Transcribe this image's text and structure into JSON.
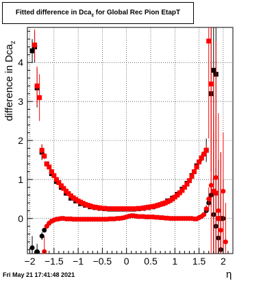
{
  "chart_data": {
    "type": "scatter",
    "title_main": "Fitted difference in Dca",
    "title_sub": "z",
    "title_rest": " for Global Rec Pion EtapT",
    "ylabel_main": "difference in Dca",
    "ylabel_sub": "z",
    "xlabel": "η",
    "xlim": [
      -2.05,
      2.2
    ],
    "ylim": [
      -0.9,
      4.9
    ],
    "x_ticks": [
      -2,
      -1.5,
      -1,
      -0.5,
      0,
      0.5,
      1,
      1.5,
      2
    ],
    "x_tick_labels": [
      "−2",
      "−1.5",
      "−1",
      "−0.5",
      "0",
      "0.5",
      "1",
      "1.5",
      "2"
    ],
    "y_ticks": [
      0,
      1,
      2,
      3,
      4
    ],
    "y_tick_labels": [
      "0",
      "1",
      "2",
      "3",
      "4"
    ],
    "grid": "dotted",
    "series": [
      {
        "marker": "square",
        "color": "#000000",
        "x": [
          -1.95,
          -1.9,
          -1.85,
          -1.75,
          -1.65,
          -1.55,
          -1.45,
          -1.35,
          -1.25,
          -1.15,
          -1.05,
          -0.95,
          -0.85,
          -0.75,
          -0.65,
          -0.55,
          -0.45,
          -0.35,
          -0.25,
          -0.15,
          -0.05,
          0.05,
          0.15,
          0.25,
          0.35,
          0.45,
          0.55,
          0.65,
          0.75,
          0.85,
          0.95,
          1.05,
          1.15,
          1.25,
          1.35,
          1.45,
          1.55,
          1.65,
          1.75,
          1.8,
          1.85,
          1.95
        ],
        "y": [
          4.3,
          4.4,
          3.35,
          1.7,
          1.4,
          1.15,
          0.95,
          0.8,
          0.65,
          0.52,
          0.45,
          0.38,
          0.34,
          0.3,
          0.28,
          0.26,
          0.25,
          0.24,
          0.24,
          0.24,
          0.24,
          0.24,
          0.24,
          0.25,
          0.26,
          0.28,
          0.3,
          0.34,
          0.38,
          0.45,
          0.52,
          0.62,
          0.75,
          0.9,
          1.1,
          1.35,
          1.55,
          1.75,
          3.2,
          3.8,
          3.7,
          0.0
        ],
        "err": [
          0.3,
          0.4,
          0.5,
          0.2,
          0.05,
          0.04,
          0.03,
          0.02,
          0.02,
          0.02,
          0.02,
          0.02,
          0.02,
          0.02,
          0.02,
          0.02,
          0.02,
          0.02,
          0.02,
          0.02,
          0.02,
          0.02,
          0.02,
          0.02,
          0.02,
          0.02,
          0.02,
          0.02,
          0.02,
          0.02,
          0.02,
          0.03,
          0.03,
          0.04,
          0.05,
          0.06,
          0.1,
          0.3,
          2.0,
          3.0,
          2.5,
          0.8
        ]
      },
      {
        "marker": "square",
        "color": "#ff0000",
        "x": [
          -1.9,
          -1.85,
          -1.8,
          -1.75,
          -1.7,
          -1.65,
          -1.6,
          -1.55,
          -1.5,
          -1.45,
          -1.4,
          -1.35,
          -1.3,
          -1.25,
          -1.2,
          -1.15,
          -1.1,
          -1.05,
          -1.0,
          -0.95,
          -0.9,
          -0.85,
          -0.8,
          -0.75,
          -0.7,
          -0.65,
          -0.6,
          -0.55,
          -0.5,
          -0.45,
          -0.4,
          -0.35,
          -0.3,
          -0.25,
          -0.2,
          -0.15,
          -0.1,
          -0.05,
          0.0,
          0.05,
          0.1,
          0.15,
          0.2,
          0.25,
          0.3,
          0.35,
          0.4,
          0.45,
          0.5,
          0.55,
          0.6,
          0.65,
          0.7,
          0.75,
          0.8,
          0.85,
          0.9,
          0.95,
          1.0,
          1.05,
          1.1,
          1.15,
          1.2,
          1.25,
          1.3,
          1.35,
          1.4,
          1.45,
          1.5,
          1.55,
          1.6,
          1.65,
          1.7,
          1.75,
          1.8,
          1.85,
          1.9
        ],
        "y": [
          4.45,
          3.4,
          3.1,
          1.75,
          1.6,
          1.4,
          1.32,
          1.2,
          1.1,
          1.0,
          0.92,
          0.84,
          0.77,
          0.7,
          0.64,
          0.58,
          0.53,
          0.49,
          0.45,
          0.42,
          0.39,
          0.36,
          0.34,
          0.32,
          0.3,
          0.29,
          0.28,
          0.27,
          0.26,
          0.26,
          0.25,
          0.25,
          0.25,
          0.25,
          0.25,
          0.25,
          0.25,
          0.25,
          0.25,
          0.25,
          0.25,
          0.25,
          0.25,
          0.26,
          0.26,
          0.27,
          0.28,
          0.29,
          0.3,
          0.31,
          0.32,
          0.34,
          0.36,
          0.38,
          0.4,
          0.43,
          0.46,
          0.5,
          0.55,
          0.6,
          0.66,
          0.72,
          0.8,
          0.88,
          0.97,
          1.08,
          1.2,
          1.32,
          1.45,
          1.55,
          1.65,
          1.75,
          4.55,
          3.45,
          0.7,
          0.65,
          0.0
        ],
        "err": [
          0.4,
          0.5,
          0.6,
          0.15,
          0.08,
          0.05,
          0.04,
          0.03,
          0.02,
          0.02,
          0.02,
          0.02,
          0.02,
          0.02,
          0.02,
          0.02,
          0.02,
          0.02,
          0.02,
          0.02,
          0.02,
          0.02,
          0.02,
          0.02,
          0.02,
          0.02,
          0.02,
          0.02,
          0.02,
          0.02,
          0.02,
          0.02,
          0.02,
          0.02,
          0.02,
          0.02,
          0.02,
          0.02,
          0.02,
          0.02,
          0.02,
          0.02,
          0.02,
          0.02,
          0.02,
          0.02,
          0.02,
          0.02,
          0.02,
          0.02,
          0.02,
          0.02,
          0.02,
          0.02,
          0.02,
          0.02,
          0.02,
          0.02,
          0.02,
          0.02,
          0.02,
          0.02,
          0.02,
          0.02,
          0.02,
          0.02,
          0.02,
          0.03,
          0.04,
          0.05,
          0.08,
          0.15,
          2.5,
          3.0,
          1.5,
          2.0,
          1.0
        ]
      },
      {
        "marker": "circle",
        "color": "#000000",
        "x": [
          -1.95,
          -1.85,
          -1.75,
          -1.7,
          -1.65,
          -1.6,
          -1.55,
          -1.5,
          -1.45,
          -1.4,
          -1.35,
          -1.3,
          -1.25,
          -1.2,
          -1.15,
          -1.1,
          -1.05,
          -1.0,
          -0.95,
          -0.9,
          -0.85,
          -0.8,
          -0.75,
          -0.7,
          -0.65,
          -0.6,
          -0.55,
          -0.5,
          -0.45,
          -0.4,
          -0.35,
          -0.3,
          -0.25,
          -0.2,
          -0.15,
          -0.1,
          -0.05,
          0.0,
          0.05,
          0.1,
          0.15,
          0.2,
          0.25,
          0.3,
          0.35,
          0.4,
          0.45,
          0.5,
          0.55,
          0.6,
          0.65,
          0.7,
          0.75,
          0.8,
          0.85,
          0.9,
          0.95,
          1.0,
          1.05,
          1.1,
          1.15,
          1.2,
          1.25,
          1.3,
          1.35,
          1.4,
          1.45,
          1.5,
          1.55,
          1.6,
          1.65,
          1.7,
          1.75,
          1.8,
          1.85,
          1.9,
          1.95,
          2.0
        ],
        "y": [
          -0.75,
          -0.85,
          -0.45,
          -0.3,
          -0.2,
          -0.12,
          -0.07,
          -0.04,
          -0.02,
          -0.01,
          0.0,
          0.0,
          -0.01,
          -0.01,
          -0.01,
          -0.02,
          -0.02,
          -0.02,
          -0.02,
          -0.02,
          -0.02,
          -0.02,
          -0.02,
          -0.02,
          -0.02,
          -0.02,
          -0.02,
          -0.02,
          -0.02,
          -0.02,
          -0.01,
          -0.01,
          -0.01,
          0.0,
          0.0,
          0.01,
          0.02,
          0.04,
          0.06,
          0.07,
          0.07,
          0.06,
          0.05,
          0.05,
          0.05,
          0.04,
          0.04,
          0.04,
          0.04,
          0.03,
          0.03,
          0.02,
          0.02,
          0.01,
          0.01,
          0.0,
          0.0,
          0.0,
          0.0,
          0.0,
          0.0,
          0.0,
          0.0,
          0.0,
          0.0,
          -0.01,
          -0.01,
          0.02,
          0.05,
          0.1,
          0.2,
          0.4,
          0.6,
          0.1,
          -0.2,
          -0.5,
          -0.8,
          0.0
        ],
        "err": [
          0.3,
          0.2,
          0.1,
          0.05,
          0.03,
          0.02,
          0.02,
          0.02,
          0.02,
          0.02,
          0.02,
          0.02,
          0.02,
          0.02,
          0.02,
          0.02,
          0.02,
          0.02,
          0.02,
          0.02,
          0.02,
          0.02,
          0.02,
          0.02,
          0.02,
          0.02,
          0.02,
          0.02,
          0.02,
          0.02,
          0.02,
          0.02,
          0.02,
          0.02,
          0.02,
          0.02,
          0.02,
          0.02,
          0.02,
          0.02,
          0.02,
          0.02,
          0.02,
          0.02,
          0.02,
          0.02,
          0.02,
          0.02,
          0.02,
          0.02,
          0.02,
          0.02,
          0.02,
          0.02,
          0.02,
          0.02,
          0.02,
          0.02,
          0.02,
          0.02,
          0.02,
          0.02,
          0.02,
          0.02,
          0.02,
          0.02,
          0.02,
          0.02,
          0.02,
          0.03,
          0.05,
          0.1,
          0.3,
          1.0,
          1.5,
          2.0,
          2.5,
          1.0
        ]
      },
      {
        "marker": "circle",
        "color": "#ff0000",
        "x": [
          -1.7,
          -1.65,
          -1.6,
          -1.55,
          -1.5,
          -1.45,
          -1.4,
          -1.35,
          -1.3,
          -1.25,
          -1.2,
          -1.15,
          -1.1,
          -1.05,
          -1.0,
          -0.95,
          -0.9,
          -0.85,
          -0.8,
          -0.75,
          -0.7,
          -0.65,
          -0.6,
          -0.55,
          -0.5,
          -0.45,
          -0.4,
          -0.35,
          -0.3,
          -0.25,
          -0.2,
          -0.15,
          -0.1,
          -0.05,
          0.0,
          0.05,
          0.1,
          0.15,
          0.2,
          0.25,
          0.3,
          0.35,
          0.4,
          0.45,
          0.5,
          0.55,
          0.6,
          0.65,
          0.7,
          0.75,
          0.8,
          0.85,
          0.9,
          0.95,
          1.0,
          1.05,
          1.1,
          1.15,
          1.2,
          1.25,
          1.3,
          1.35,
          1.4,
          1.45,
          1.5,
          1.55,
          1.6,
          1.65,
          1.7,
          1.75,
          1.8,
          1.85,
          1.9,
          1.95,
          2.0,
          2.05
        ],
        "y": [
          -0.85,
          -0.2,
          -0.12,
          -0.07,
          -0.04,
          -0.02,
          -0.01,
          0.0,
          0.0,
          -0.01,
          -0.01,
          -0.01,
          -0.02,
          -0.02,
          -0.02,
          -0.02,
          -0.02,
          -0.02,
          -0.02,
          -0.02,
          -0.02,
          -0.02,
          -0.02,
          -0.02,
          -0.02,
          -0.02,
          -0.02,
          -0.01,
          -0.01,
          -0.01,
          0.0,
          0.0,
          0.01,
          0.02,
          0.04,
          0.06,
          0.07,
          0.07,
          0.06,
          0.05,
          0.05,
          0.05,
          0.04,
          0.04,
          0.04,
          0.04,
          0.03,
          0.03,
          0.02,
          0.02,
          0.01,
          0.01,
          0.0,
          0.0,
          0.0,
          0.0,
          0.0,
          0.0,
          0.0,
          0.0,
          0.0,
          0.0,
          -0.01,
          -0.01,
          0.02,
          0.05,
          0.1,
          0.25,
          0.5,
          0.85,
          0.7,
          1.05,
          0.2,
          -0.3,
          0.7,
          -0.6
        ],
        "err": [
          0.4,
          0.05,
          0.03,
          0.02,
          0.02,
          0.02,
          0.02,
          0.02,
          0.02,
          0.02,
          0.02,
          0.02,
          0.02,
          0.02,
          0.02,
          0.02,
          0.02,
          0.02,
          0.02,
          0.02,
          0.02,
          0.02,
          0.02,
          0.02,
          0.02,
          0.02,
          0.02,
          0.02,
          0.02,
          0.02,
          0.02,
          0.02,
          0.02,
          0.02,
          0.02,
          0.02,
          0.02,
          0.02,
          0.02,
          0.02,
          0.02,
          0.02,
          0.02,
          0.02,
          0.02,
          0.02,
          0.02,
          0.02,
          0.02,
          0.02,
          0.02,
          0.02,
          0.02,
          0.02,
          0.02,
          0.02,
          0.02,
          0.02,
          0.02,
          0.02,
          0.02,
          0.02,
          0.02,
          0.02,
          0.02,
          0.03,
          0.05,
          0.1,
          0.3,
          2.5,
          3.0,
          3.5,
          2.5,
          2.0,
          1.5,
          1.0
        ]
      }
    ]
  },
  "footer": {
    "datestamp": "Fri May 21 17:41:48 2021"
  }
}
